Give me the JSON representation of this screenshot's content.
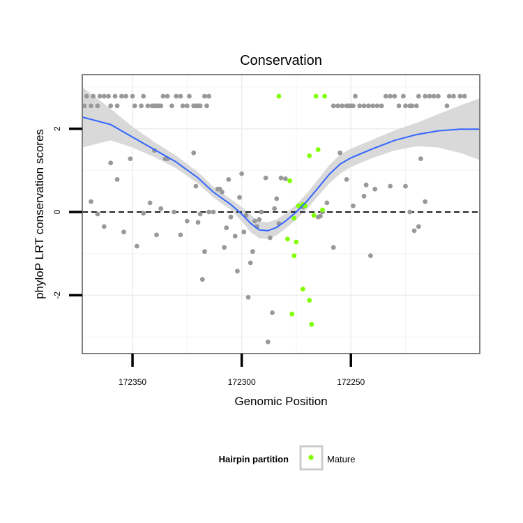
{
  "chart_data": {
    "type": "scatter",
    "title": "Conservation",
    "xlabel": "Genomic Position",
    "ylabel": "phyloP LRT conservation scores",
    "x_reversed": true,
    "xlim": [
      172373,
      172191
    ],
    "ylim": [
      -3.4,
      3.3
    ],
    "x_ticks": [
      172350,
      172300,
      172250
    ],
    "x_tick_labels": [
      "172350",
      "172300",
      "172250"
    ],
    "y_ticks": [
      -2,
      0,
      2
    ],
    "y_tick_labels": [
      "-2",
      "0",
      "2"
    ],
    "grid": true,
    "reference_line": {
      "y": 0,
      "style": "dashed"
    },
    "legend": {
      "title": "Hairpin partition",
      "position": "bottom",
      "entries": [
        {
          "label": "Mature",
          "color": "#7FFF00"
        }
      ]
    },
    "colors": {
      "other": "#999999",
      "mature": "#7FFF00",
      "smooth": "#3366FF",
      "ribbon": "#D9D9D9",
      "panel_border": "#7F7F7F"
    },
    "points": {
      "other": [
        [
          172372,
          2.55
        ],
        [
          172371,
          2.78
        ],
        [
          172369,
          2.55
        ],
        [
          172368,
          2.78
        ],
        [
          172366,
          2.55
        ],
        [
          172365,
          2.78
        ],
        [
          172363,
          2.78
        ],
        [
          172361,
          2.78
        ],
        [
          172360,
          2.55
        ],
        [
          172358,
          2.78
        ],
        [
          172357,
          2.55
        ],
        [
          172355,
          2.78
        ],
        [
          172353,
          2.78
        ],
        [
          172350,
          2.78
        ],
        [
          172349,
          2.55
        ],
        [
          172346,
          2.55
        ],
        [
          172345,
          2.78
        ],
        [
          172343,
          2.55
        ],
        [
          172341,
          2.55
        ],
        [
          172340,
          2.55
        ],
        [
          172339,
          2.55
        ],
        [
          172338,
          2.55
        ],
        [
          172337,
          2.55
        ],
        [
          172336,
          2.78
        ],
        [
          172334,
          2.78
        ],
        [
          172332,
          2.55
        ],
        [
          172330,
          2.78
        ],
        [
          172328,
          2.78
        ],
        [
          172327,
          2.55
        ],
        [
          172325,
          2.55
        ],
        [
          172324,
          2.78
        ],
        [
          172322,
          2.55
        ],
        [
          172321,
          2.55
        ],
        [
          172320,
          2.55
        ],
        [
          172319,
          2.55
        ],
        [
          172317,
          2.78
        ],
        [
          172316,
          2.55
        ],
        [
          172315,
          2.78
        ],
        [
          172249,
          2.55
        ],
        [
          172248,
          2.78
        ],
        [
          172246,
          2.55
        ],
        [
          172244,
          2.55
        ],
        [
          172242,
          2.55
        ],
        [
          172240,
          2.55
        ],
        [
          172238,
          2.55
        ],
        [
          172236,
          2.55
        ],
        [
          172234,
          2.78
        ],
        [
          172232,
          2.78
        ],
        [
          172230,
          2.78
        ],
        [
          172228,
          2.55
        ],
        [
          172226,
          2.78
        ],
        [
          172225,
          2.55
        ],
        [
          172223,
          2.55
        ],
        [
          172222,
          2.55
        ],
        [
          172220,
          2.55
        ],
        [
          172219,
          2.78
        ],
        [
          172216,
          2.78
        ],
        [
          172214,
          2.78
        ],
        [
          172212,
          2.78
        ],
        [
          172210,
          2.78
        ],
        [
          172206,
          2.55
        ],
        [
          172205,
          2.78
        ],
        [
          172203,
          2.78
        ],
        [
          172200,
          2.78
        ],
        [
          172198,
          2.78
        ],
        [
          172258,
          2.55
        ],
        [
          172256,
          2.55
        ],
        [
          172254,
          2.55
        ],
        [
          172252,
          2.55
        ],
        [
          172251,
          2.55
        ],
        [
          172250,
          2.55
        ],
        [
          172369,
          0.25
        ],
        [
          172366,
          -0.05
        ],
        [
          172363,
          -0.35
        ],
        [
          172360,
          1.18
        ],
        [
          172357,
          0.78
        ],
        [
          172354,
          -0.48
        ],
        [
          172351,
          1.28
        ],
        [
          172348,
          -0.82
        ],
        [
          172345,
          -0.03
        ],
        [
          172342,
          0.22
        ],
        [
          172340,
          1.48
        ],
        [
          172339,
          -0.55
        ],
        [
          172337,
          0.08
        ],
        [
          172335,
          1.28
        ],
        [
          172334,
          1.28
        ],
        [
          172331,
          0.0
        ],
        [
          172328,
          -0.55
        ],
        [
          172325,
          -0.22
        ],
        [
          172322,
          1.42
        ],
        [
          172321,
          0.62
        ],
        [
          172320,
          -0.25
        ],
        [
          172319,
          -0.05
        ],
        [
          172318,
          -1.62
        ],
        [
          172317,
          -0.95
        ],
        [
          172315,
          0.0
        ],
        [
          172313,
          0.0
        ],
        [
          172311,
          0.55
        ],
        [
          172310,
          0.55
        ],
        [
          172309,
          0.48
        ],
        [
          172308,
          -0.85
        ],
        [
          172307,
          -0.38
        ],
        [
          172306,
          0.78
        ],
        [
          172305,
          -0.12
        ],
        [
          172303,
          -0.58
        ],
        [
          172302,
          -1.42
        ],
        [
          172301,
          0.35
        ],
        [
          172300,
          0.92
        ],
        [
          172299,
          -0.48
        ],
        [
          172298,
          -0.08
        ],
        [
          172297,
          -2.05
        ],
        [
          172296,
          -1.22
        ],
        [
          172295,
          -0.95
        ],
        [
          172294,
          -0.22
        ],
        [
          172293,
          -0.35
        ],
        [
          172292,
          -0.18
        ],
        [
          172291,
          0.0
        ],
        [
          172289,
          0.82
        ],
        [
          172288,
          -3.12
        ],
        [
          172287,
          -0.62
        ],
        [
          172286,
          -2.42
        ],
        [
          172285,
          0.08
        ],
        [
          172284,
          0.32
        ],
        [
          172283,
          -0.28
        ],
        [
          172282,
          0.82
        ],
        [
          172280,
          0.8
        ],
        [
          172272,
          0.12
        ],
        [
          172265,
          -0.12
        ],
        [
          172264,
          -0.1
        ],
        [
          172263,
          0.0
        ],
        [
          172261,
          0.22
        ],
        [
          172258,
          -0.85
        ],
        [
          172255,
          1.42
        ],
        [
          172252,
          0.78
        ],
        [
          172249,
          0.15
        ],
        [
          172244,
          0.38
        ],
        [
          172243,
          0.65
        ],
        [
          172241,
          -1.05
        ],
        [
          172239,
          0.55
        ],
        [
          172232,
          0.62
        ],
        [
          172225,
          0.62
        ],
        [
          172223,
          0.0
        ],
        [
          172221,
          -0.45
        ],
        [
          172219,
          -0.35
        ],
        [
          172218,
          1.28
        ],
        [
          172216,
          0.25
        ]
      ],
      "mature": [
        [
          172283,
          2.78
        ],
        [
          172278,
          0.75
        ],
        [
          172276,
          -0.15
        ],
        [
          172274,
          0.15
        ],
        [
          172272,
          0.18
        ],
        [
          172271,
          0.15
        ],
        [
          172269,
          1.35
        ],
        [
          172267,
          -0.08
        ],
        [
          172265,
          1.5
        ],
        [
          172263,
          0.05
        ],
        [
          172279,
          -0.65
        ],
        [
          172275,
          -0.72
        ],
        [
          172276,
          -1.05
        ],
        [
          172272,
          -1.85
        ],
        [
          172269,
          -2.12
        ],
        [
          172268,
          -2.7
        ],
        [
          172277,
          -2.45
        ],
        [
          172266,
          2.78
        ],
        [
          172262,
          2.78
        ]
      ]
    },
    "smooth_line": {
      "x": [
        172373,
        172360,
        172350,
        172340,
        172330,
        172320,
        172313,
        172305,
        172300,
        172296,
        172292,
        172288,
        172284,
        172280,
        172275,
        172270,
        172265,
        172260,
        172255,
        172250,
        172240,
        172230,
        172220,
        172210,
        172200,
        172191
      ],
      "y": [
        2.28,
        2.1,
        1.8,
        1.5,
        1.2,
        0.82,
        0.48,
        0.18,
        -0.05,
        -0.27,
        -0.43,
        -0.45,
        -0.37,
        -0.22,
        0.0,
        0.27,
        0.58,
        0.9,
        1.15,
        1.3,
        1.52,
        1.72,
        1.86,
        1.95,
        1.99,
        1.99
      ],
      "ribbon_low": [
        1.55,
        1.72,
        1.55,
        1.32,
        1.05,
        0.68,
        0.35,
        0.05,
        -0.22,
        -0.48,
        -0.63,
        -0.65,
        -0.56,
        -0.4,
        -0.18,
        0.08,
        0.38,
        0.68,
        0.92,
        1.08,
        1.3,
        1.48,
        1.58,
        1.55,
        1.42,
        1.25
      ],
      "ribbon_high": [
        3.0,
        2.48,
        2.05,
        1.68,
        1.35,
        0.96,
        0.61,
        0.31,
        0.12,
        -0.06,
        -0.23,
        -0.25,
        -0.18,
        -0.04,
        0.18,
        0.46,
        0.78,
        1.12,
        1.38,
        1.52,
        1.74,
        1.96,
        2.14,
        2.35,
        2.56,
        2.73
      ]
    }
  }
}
